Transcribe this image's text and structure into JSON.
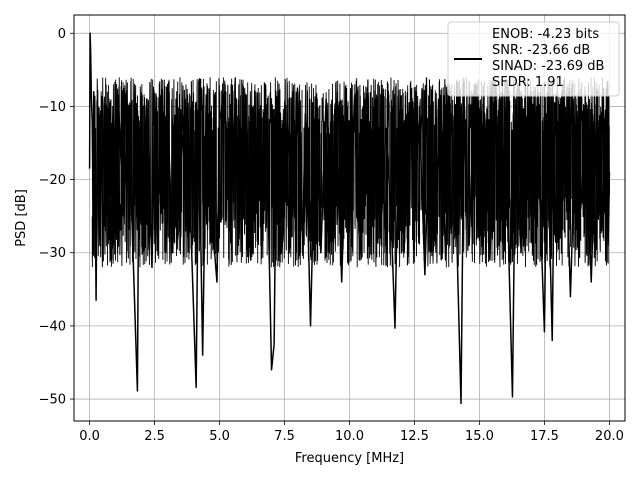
{
  "chart_data": {
    "type": "line",
    "title": "",
    "xlabel": "Frequency [MHz]",
    "ylabel": "PSD [dB]",
    "xlim": [
      -0.6,
      20.6
    ],
    "ylim": [
      -53,
      2.5
    ],
    "xticks": [
      0.0,
      2.5,
      5.0,
      7.5,
      10.0,
      12.5,
      15.0,
      17.5,
      20.0
    ],
    "xtick_labels": [
      "0.0",
      "2.5",
      "5.0",
      "7.5",
      "10.0",
      "12.5",
      "15.0",
      "17.5",
      "20.0"
    ],
    "yticks": [
      0,
      -10,
      -20,
      -30,
      -40,
      -50
    ],
    "ytick_labels": [
      "0",
      "−10",
      "−20",
      "−30",
      "−40",
      "−50"
    ],
    "grid": true,
    "legend_position": "upper-right",
    "series_color": "#000000",
    "legend": {
      "lines": [
        "ENOB: -4.23 bits",
        "SNR: -23.66 dB",
        "SINAD: -23.69 dB",
        "SFDR: 1.91"
      ]
    },
    "series": [
      {
        "points": [
          [
            0.0,
            -18.5
          ],
          [
            0.02,
            0.0
          ],
          [
            0.04,
            -2.5
          ],
          [
            0.07,
            -9.0
          ],
          [
            0.1,
            -12.0
          ],
          [
            0.13,
            -23.0
          ],
          [
            0.16,
            -8.0
          ],
          [
            0.2,
            -15.0
          ],
          [
            0.25,
            -36.5
          ],
          [
            0.3,
            -12.0
          ],
          [
            0.4,
            -29.0
          ],
          [
            0.5,
            -9.5
          ],
          [
            0.6,
            -27.0
          ],
          [
            0.7,
            -14.0
          ],
          [
            0.8,
            -31.0
          ],
          [
            0.9,
            -10.0
          ],
          [
            1.0,
            -22.0
          ],
          [
            1.1,
            -8.5
          ],
          [
            1.3,
            -25.0
          ],
          [
            1.5,
            -11.0
          ],
          [
            1.84,
            -48.9
          ],
          [
            1.9,
            -12.0
          ],
          [
            2.0,
            -26.0
          ],
          [
            2.2,
            -9.0
          ],
          [
            2.4,
            -32.0
          ],
          [
            2.5,
            -13.0
          ],
          [
            2.6,
            -28.0
          ],
          [
            2.8,
            -8.0
          ],
          [
            2.9,
            -24.0
          ],
          [
            3.0,
            -10.5
          ],
          [
            3.2,
            -30.0
          ],
          [
            3.3,
            -12.0
          ],
          [
            3.5,
            -18.0
          ],
          [
            3.7,
            -9.0
          ],
          [
            3.9,
            -27.0
          ],
          [
            4.1,
            -48.4
          ],
          [
            4.2,
            -11.0
          ],
          [
            4.35,
            -44.0
          ],
          [
            4.5,
            -8.5
          ],
          [
            4.7,
            -25.0
          ],
          [
            4.9,
            -34.0
          ],
          [
            5.0,
            -12.0
          ],
          [
            5.2,
            -8.0
          ],
          [
            5.4,
            -27.0
          ],
          [
            5.6,
            -10.0
          ],
          [
            5.8,
            -22.0
          ],
          [
            6.0,
            -9.0
          ],
          [
            6.2,
            -31.0
          ],
          [
            6.4,
            -13.0
          ],
          [
            6.6,
            -20.0
          ],
          [
            6.8,
            -11.0
          ],
          [
            7.0,
            -46.0
          ],
          [
            7.1,
            -42.5
          ],
          [
            7.2,
            -9.0
          ],
          [
            7.4,
            -30.0
          ],
          [
            7.6,
            -12.0
          ],
          [
            7.8,
            -25.0
          ],
          [
            8.0,
            -7.5
          ],
          [
            8.2,
            -28.0
          ],
          [
            8.3,
            -11.0
          ],
          [
            8.5,
            -40.0
          ],
          [
            8.7,
            -10.0
          ],
          [
            8.9,
            -30.0
          ],
          [
            9.1,
            -9.0
          ],
          [
            9.3,
            -24.0
          ],
          [
            9.5,
            -12.0
          ],
          [
            9.7,
            -34.0
          ],
          [
            9.9,
            -10.0
          ],
          [
            10.0,
            -27.0
          ],
          [
            10.2,
            -8.5
          ],
          [
            10.4,
            -31.0
          ],
          [
            10.6,
            -12.0
          ],
          [
            10.8,
            -21.0
          ],
          [
            11.0,
            -9.0
          ],
          [
            11.2,
            -28.0
          ],
          [
            11.4,
            -13.0
          ],
          [
            11.6,
            -25.0
          ],
          [
            11.75,
            -40.3
          ],
          [
            11.9,
            -11.0
          ],
          [
            12.1,
            -30.0
          ],
          [
            12.3,
            -9.5
          ],
          [
            12.5,
            -22.0
          ],
          [
            12.7,
            -12.0
          ],
          [
            12.9,
            -33.0
          ],
          [
            13.1,
            -10.0
          ],
          [
            13.3,
            -26.0
          ],
          [
            13.5,
            -8.5
          ],
          [
            13.7,
            -31.0
          ],
          [
            13.9,
            -11.0
          ],
          [
            14.1,
            -24.0
          ],
          [
            14.29,
            -50.6
          ],
          [
            14.4,
            -12.0
          ],
          [
            14.6,
            -29.0
          ],
          [
            14.8,
            -9.5
          ],
          [
            15.0,
            -23.0
          ],
          [
            15.2,
            -11.0
          ],
          [
            15.4,
            -31.0
          ],
          [
            15.6,
            -10.0
          ],
          [
            15.8,
            -26.0
          ],
          [
            16.0,
            -12.0
          ],
          [
            16.27,
            -49.7
          ],
          [
            16.4,
            -9.0
          ],
          [
            16.6,
            -30.0
          ],
          [
            16.8,
            -11.5
          ],
          [
            17.0,
            -25.0
          ],
          [
            17.2,
            -10.0
          ],
          [
            17.5,
            -40.8
          ],
          [
            17.6,
            -12.0
          ],
          [
            17.8,
            -42.0
          ],
          [
            17.9,
            -9.5
          ],
          [
            18.1,
            -28.0
          ],
          [
            18.3,
            -11.0
          ],
          [
            18.5,
            -36.0
          ],
          [
            18.7,
            -12.5
          ],
          [
            18.9,
            -24.0
          ],
          [
            19.1,
            -9.5
          ],
          [
            19.3,
            -34.0
          ],
          [
            19.5,
            -11.0
          ],
          [
            19.7,
            -27.0
          ],
          [
            19.85,
            -10.5
          ],
          [
            19.95,
            -29.0
          ],
          [
            20.0,
            -19.0
          ]
        ]
      }
    ]
  }
}
